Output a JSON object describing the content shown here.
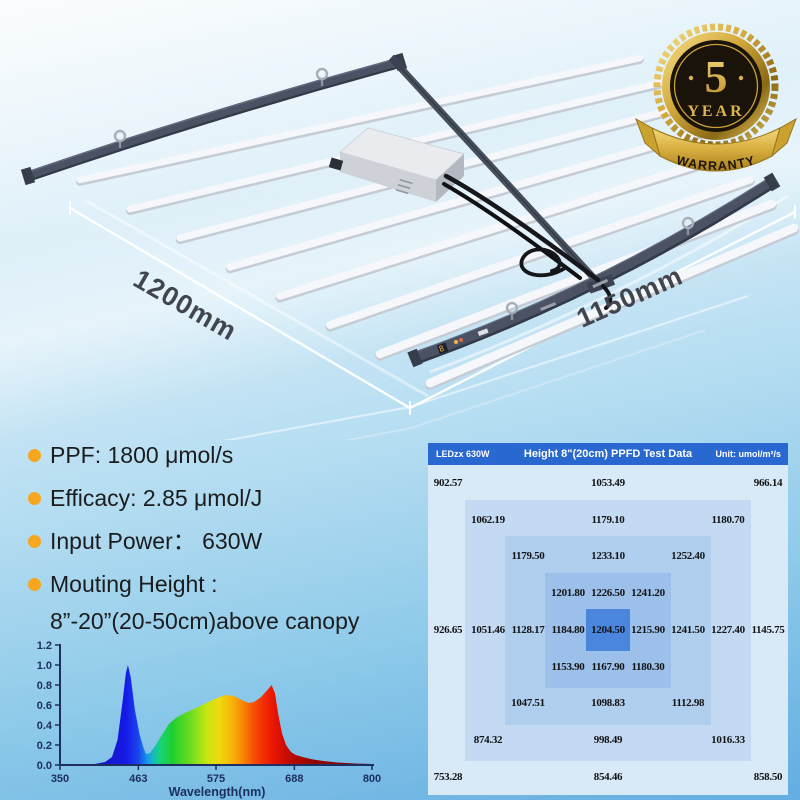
{
  "fixture": {
    "dim_left": "1200mm",
    "dim_right": "1150mm"
  },
  "badge": {
    "number": "5",
    "line1": "YEAR",
    "line2": "WARRANTY"
  },
  "specs": {
    "bullet_color": "#f6a71f",
    "items": [
      {
        "text": "PPF: 1800 μmol/s"
      },
      {
        "text": "Efficacy: 2.85 μmol/J"
      },
      {
        "text": "Input Power： 630W"
      },
      {
        "text": "Mouting Height :",
        "sub": "8”-20”(20-50cm)above canopy"
      }
    ]
  },
  "chart_data": [
    {
      "type": "area",
      "name": "light-spectrum",
      "title": "",
      "xlabel": "Wavelength(nm)",
      "ylabel": "",
      "xlim": [
        350,
        800
      ],
      "ylim": [
        0,
        1.2
      ],
      "x_ticks": [
        350,
        463,
        575,
        688,
        800
      ],
      "y_ticks": [
        "0.0",
        "0.2",
        "0.4",
        "0.6",
        "0.8",
        "1.0",
        "1.2"
      ],
      "legend": "none",
      "grid": "off",
      "fill": "wavelength rainbow gradient",
      "points": [
        [
          350,
          0
        ],
        [
          400,
          0.01
        ],
        [
          415,
          0.03
        ],
        [
          425,
          0.08
        ],
        [
          433,
          0.25
        ],
        [
          440,
          0.62
        ],
        [
          445,
          0.92
        ],
        [
          448,
          1.0
        ],
        [
          452,
          0.88
        ],
        [
          458,
          0.55
        ],
        [
          465,
          0.3
        ],
        [
          470,
          0.18
        ],
        [
          474,
          0.11
        ],
        [
          480,
          0.12
        ],
        [
          488,
          0.2
        ],
        [
          497,
          0.3
        ],
        [
          507,
          0.41
        ],
        [
          517,
          0.47
        ],
        [
          527,
          0.51
        ],
        [
          540,
          0.55
        ],
        [
          555,
          0.6
        ],
        [
          570,
          0.65
        ],
        [
          580,
          0.68
        ],
        [
          590,
          0.7
        ],
        [
          600,
          0.69
        ],
        [
          612,
          0.65
        ],
        [
          622,
          0.62
        ],
        [
          630,
          0.63
        ],
        [
          640,
          0.68
        ],
        [
          648,
          0.74
        ],
        [
          655,
          0.8
        ],
        [
          660,
          0.72
        ],
        [
          665,
          0.5
        ],
        [
          670,
          0.32
        ],
        [
          676,
          0.2
        ],
        [
          683,
          0.13
        ],
        [
          690,
          0.1
        ],
        [
          700,
          0.08
        ],
        [
          715,
          0.055
        ],
        [
          730,
          0.04
        ],
        [
          750,
          0.025
        ],
        [
          775,
          0.015
        ],
        [
          800,
          0.01
        ]
      ]
    },
    {
      "type": "heatmap",
      "name": "ppfd-test-data",
      "model": "LEDzx 630W",
      "title": "Height 8\"(20cm) PPFD Test Data",
      "unit": "Unit: umol/m²/s",
      "header_bg": "#2968d0",
      "level_colors": [
        "#d8e9f8",
        "#c4daf3",
        "#b0ceee",
        "#9cc0e9",
        "#4a86dc"
      ],
      "grid": [
        [
          902.57,
          null,
          null,
          null,
          1053.49,
          null,
          null,
          null,
          966.14
        ],
        [
          null,
          1062.19,
          null,
          null,
          1179.1,
          null,
          null,
          1180.7,
          null
        ],
        [
          null,
          null,
          1179.5,
          null,
          1233.1,
          null,
          1252.4,
          null,
          null
        ],
        [
          null,
          null,
          null,
          1201.8,
          1226.5,
          1241.2,
          null,
          null,
          null
        ],
        [
          926.65,
          1051.46,
          1128.17,
          1184.8,
          1204.5,
          1215.9,
          1241.5,
          1227.4,
          1145.75
        ],
        [
          null,
          null,
          null,
          1153.9,
          1167.9,
          1180.3,
          null,
          null,
          null
        ],
        [
          null,
          null,
          1047.51,
          null,
          1098.83,
          null,
          1112.98,
          null,
          null
        ],
        [
          null,
          874.32,
          null,
          null,
          998.49,
          null,
          null,
          1016.33,
          null
        ],
        [
          753.28,
          null,
          null,
          null,
          854.46,
          null,
          null,
          null,
          858.5
        ]
      ]
    }
  ]
}
